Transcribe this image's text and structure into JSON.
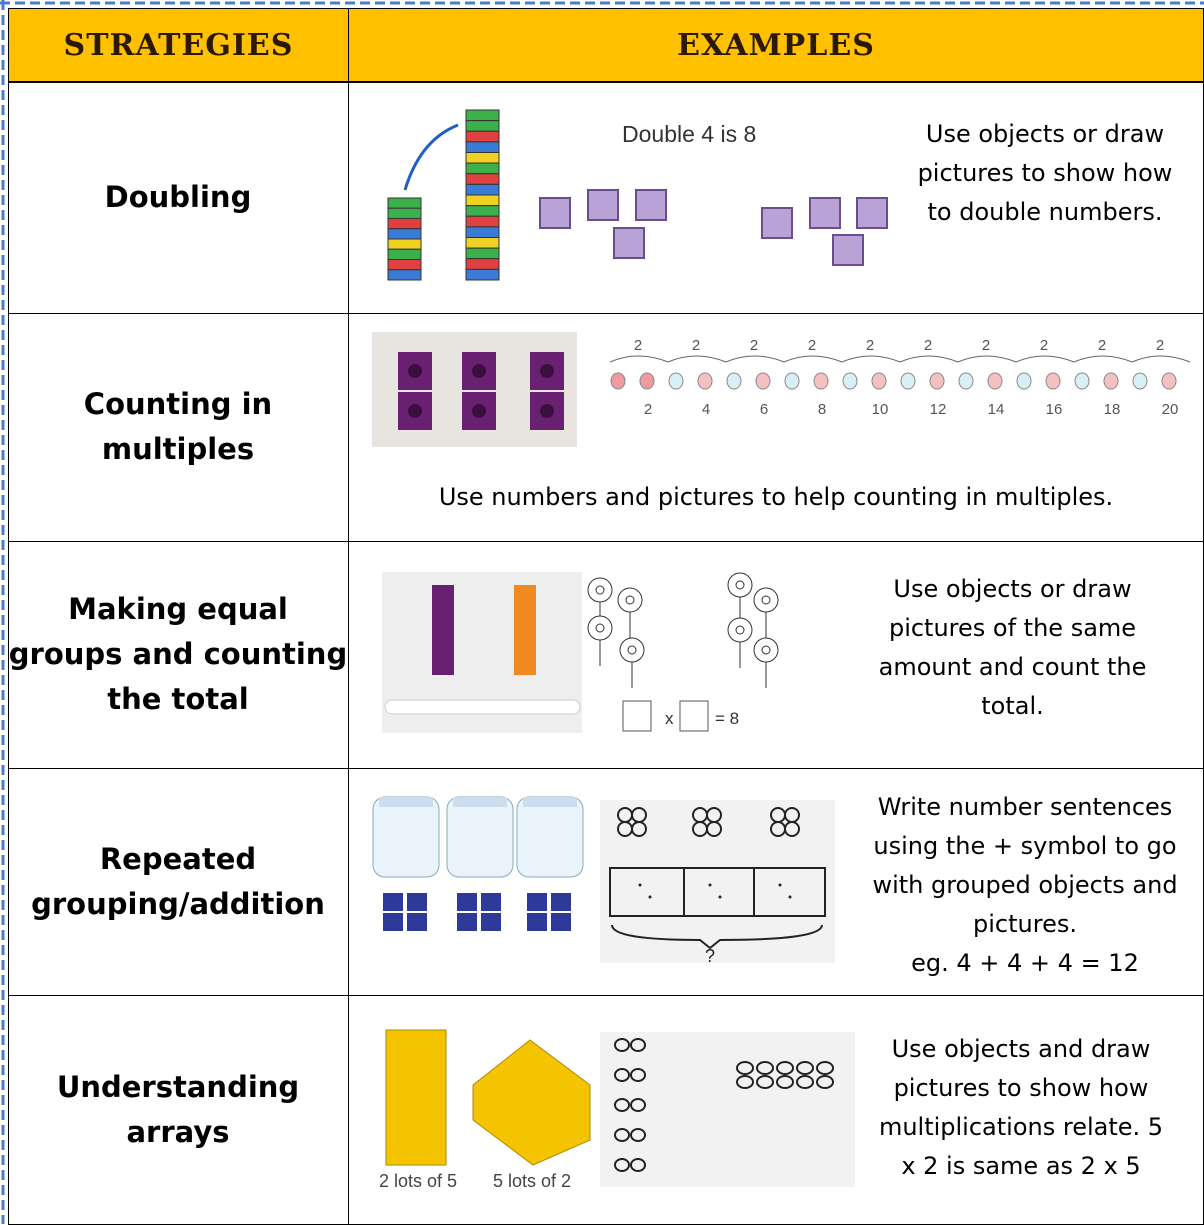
{
  "header": {
    "strategies": "STRATEGIES",
    "examples": "EXAMPLES"
  },
  "rows": [
    {
      "strategy": "Doubling",
      "description": "Use objects or draw pictures to show how to double numbers.",
      "image_text": "Double 4 is 8"
    },
    {
      "strategy": "Counting in multiples",
      "description": "Use numbers and pictures to help counting in multiples.",
      "group_sizes": [
        "2",
        "2",
        "2",
        "2",
        "2",
        "2",
        "2",
        "2",
        "2",
        "2"
      ],
      "line_numbers": [
        "2",
        "4",
        "6",
        "8",
        "10",
        "12",
        "14",
        "16",
        "18",
        "20"
      ]
    },
    {
      "strategy": "Making equal groups and counting the total",
      "description": "Use objects or draw pictures of the same amount and count the total.",
      "times_sign": "x",
      "equals": "= 8"
    },
    {
      "strategy": "Repeated grouping/addition",
      "description": "Write number sentences using the + symbol to go with grouped objects and pictures.",
      "example": "eg. 4 + 4 + 4 = 12",
      "question": "?"
    },
    {
      "strategy": "Understanding arrays",
      "description": "Use objects and draw pictures to show how multiplications relate. 5 x 2 is same as 2 x 5",
      "caption_left": "2 lots of 5",
      "caption_right": "5 lots of 2"
    }
  ]
}
